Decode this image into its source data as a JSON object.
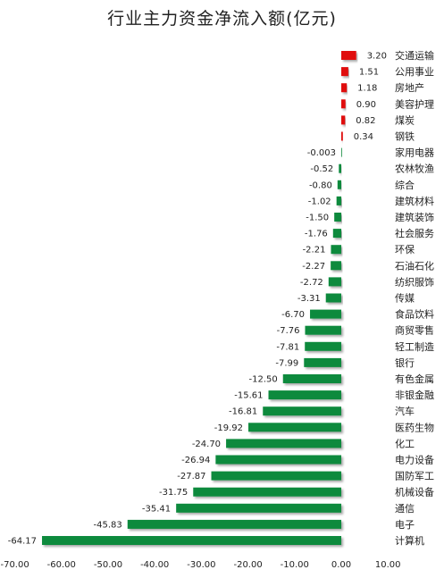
{
  "chart_data": {
    "type": "bar",
    "orientation": "horizontal",
    "title": "行业主力资金净流入额(亿元)",
    "categories": [
      "交通运输",
      "公用事业",
      "房地产",
      "美容护理",
      "煤炭",
      "钢铁",
      "家用电器",
      "农林牧渔",
      "综合",
      "建筑材料",
      "建筑装饰",
      "社会服务",
      "环保",
      "石油石化",
      "纺织服饰",
      "传媒",
      "食品饮料",
      "商贸零售",
      "轻工制造",
      "银行",
      "有色金属",
      "非银金融",
      "汽车",
      "医药生物",
      "化工",
      "电力设备",
      "国防军工",
      "机械设备",
      "通信",
      "电子",
      "计算机"
    ],
    "values": [
      3.2,
      1.51,
      1.18,
      0.9,
      0.82,
      0.34,
      -0.003,
      -0.52,
      -0.8,
      -1.02,
      -1.5,
      -1.76,
      -2.21,
      -2.27,
      -2.72,
      -3.31,
      -6.7,
      -7.76,
      -7.81,
      -7.99,
      -12.5,
      -15.61,
      -16.81,
      -19.92,
      -24.7,
      -26.94,
      -27.87,
      -31.75,
      -35.41,
      -45.83,
      -64.17
    ],
    "value_labels": [
      "3.20",
      "1.51",
      "1.18",
      "0.90",
      "0.82",
      "0.34",
      "-0.003",
      "-0.52",
      "-0.80",
      "-1.02",
      "-1.50",
      "-1.76",
      "-2.21",
      "-2.27",
      "-2.72",
      "-3.31",
      "-6.70",
      "-7.76",
      "-7.81",
      "-7.99",
      "-12.50",
      "-15.61",
      "-16.81",
      "-19.92",
      "-24.70",
      "-26.94",
      "-27.87",
      "-31.75",
      "-35.41",
      "-45.83",
      "-64.17"
    ],
    "xlim": [
      -70,
      10
    ],
    "x_ticks": [
      "-70.00",
      "-60.00",
      "-50.00",
      "-40.00",
      "-30.00",
      "-20.00",
      "-10.00",
      "0.00",
      "10.00"
    ],
    "grid": false,
    "legend": "none",
    "colors": {
      "positive": "#e01010",
      "negative": "#0f8a3c"
    }
  }
}
